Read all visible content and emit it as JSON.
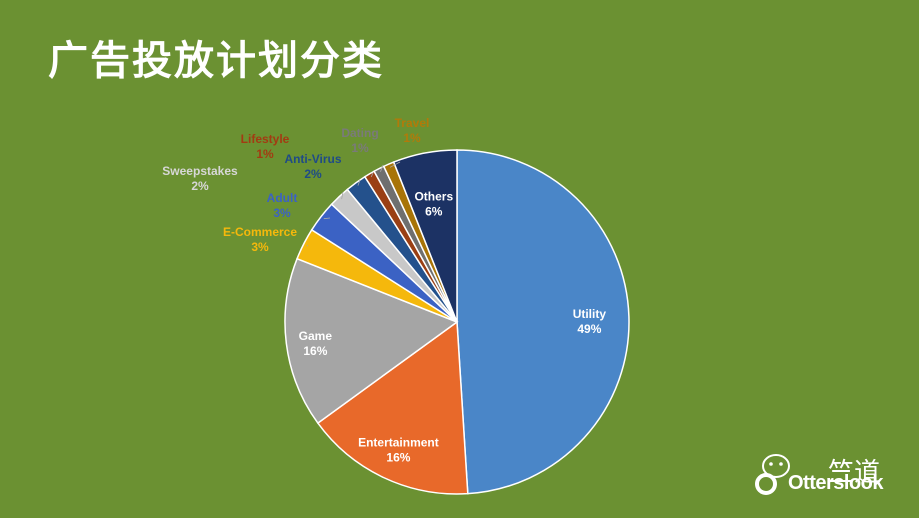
{
  "slide": {
    "title": "广告投放计划分类"
  },
  "watermark": {
    "cn": "竺道",
    "en": "Otterslook"
  },
  "chart_data": {
    "type": "pie",
    "title": "",
    "start_angle_deg": 0,
    "direction": "clockwise",
    "slices": [
      {
        "name": "Utility",
        "value": 49,
        "label": "49%",
        "color": "#4a86c8",
        "label_color": "#ffffff"
      },
      {
        "name": "Entertainment",
        "value": 16,
        "label": "16%",
        "color": "#e8692a",
        "label_color": "#ffffff"
      },
      {
        "name": "Game",
        "value": 16,
        "label": "16%",
        "color": "#a5a5a5",
        "label_color": "#ffffff"
      },
      {
        "name": "E-Commerce",
        "value": 3,
        "label": "3%",
        "color": "#f5b80c",
        "label_color": "#f5b80c"
      },
      {
        "name": "Adult",
        "value": 3,
        "label": "3%",
        "color": "#3b62c4",
        "label_color": "#3b62c4"
      },
      {
        "name": "Sweepstakes",
        "value": 2,
        "label": "2%",
        "color": "#c8c8c8",
        "label_color": "#d7d7d7"
      },
      {
        "name": "Anti-Virus",
        "value": 2,
        "label": "2%",
        "color": "#24518c",
        "label_color": "#1f4b87"
      },
      {
        "name": "Lifestyle",
        "value": 1,
        "label": "1%",
        "color": "#9a3f14",
        "label_color": "#a33b12"
      },
      {
        "name": "Dating",
        "value": 1,
        "label": "1%",
        "color": "#6f6f6f",
        "label_color": "#7a7a7a"
      },
      {
        "name": "Travel",
        "value": 1,
        "label": "1%",
        "color": "#a87408",
        "label_color": "#b27a0a"
      },
      {
        "name": "Others",
        "value": 6,
        "label": "6%",
        "color": "#1c3264",
        "label_color": "#ffffff"
      }
    ]
  }
}
